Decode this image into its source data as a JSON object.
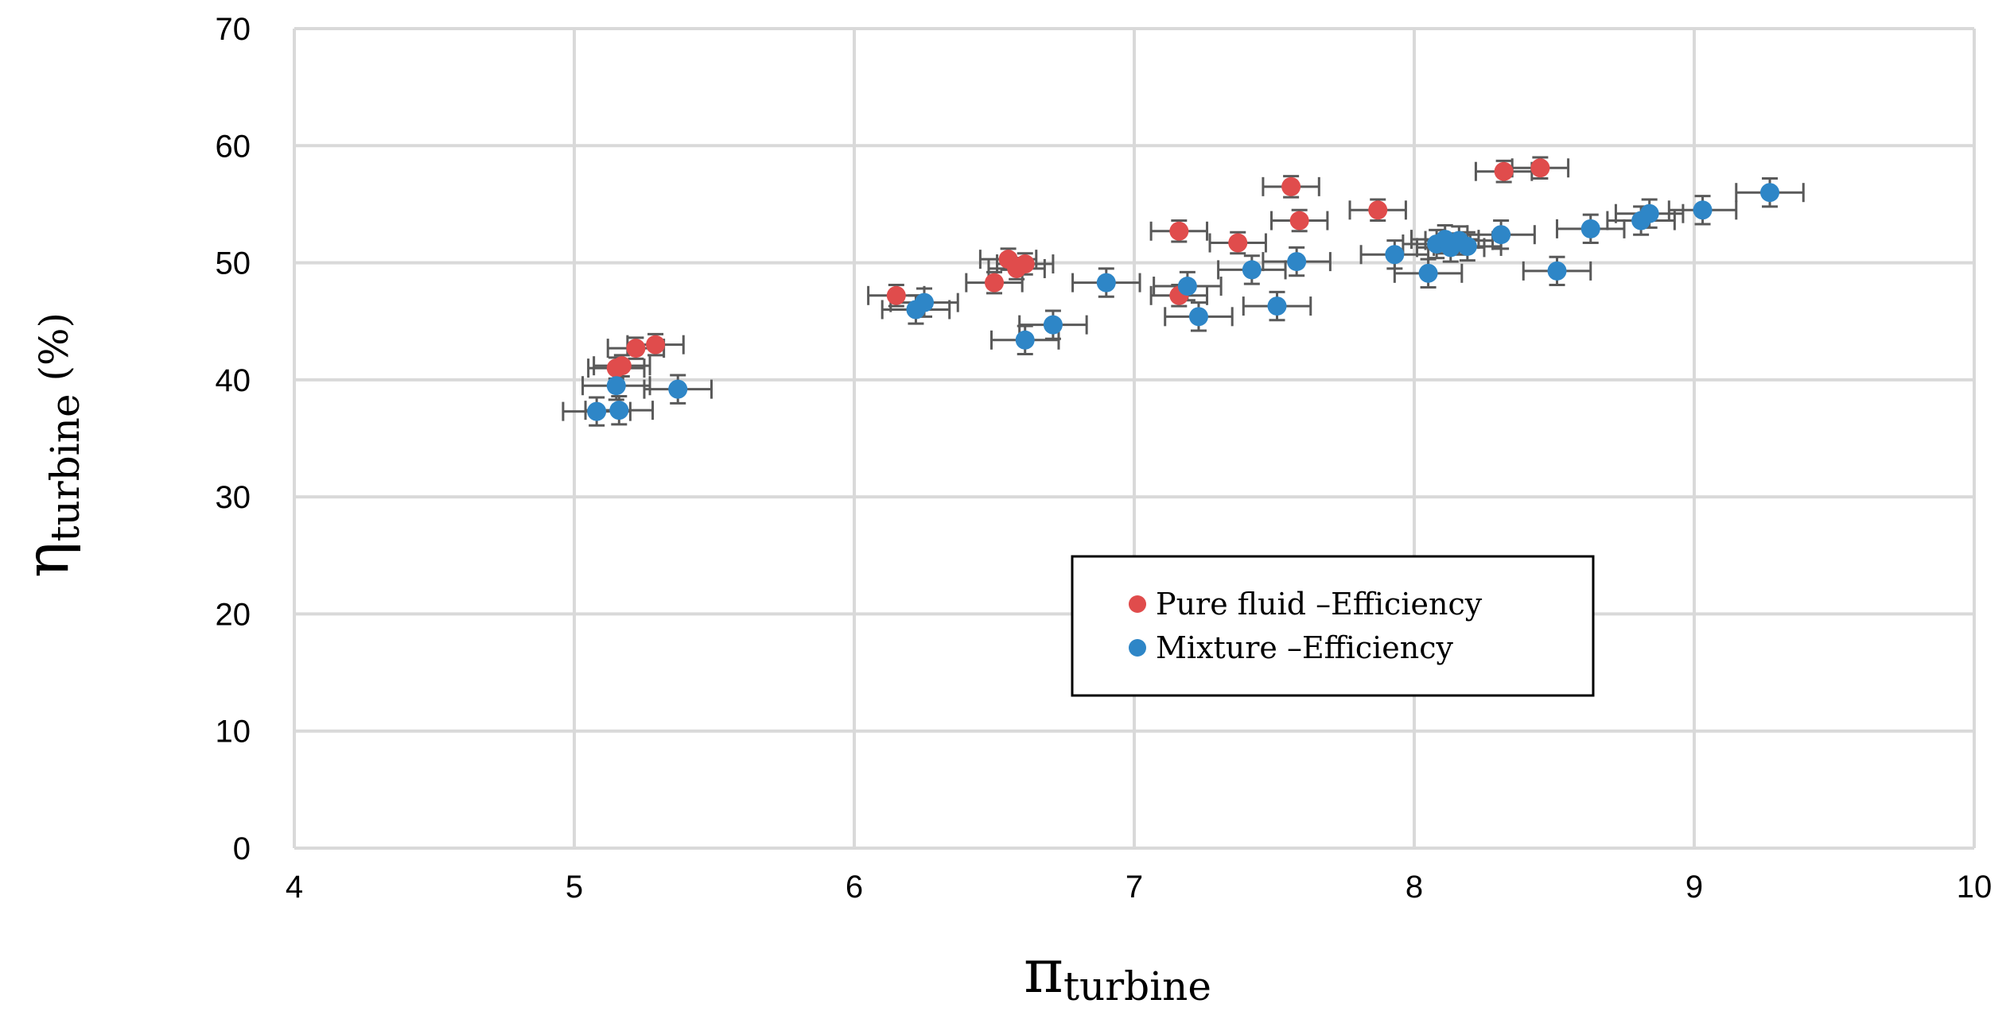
{
  "chart_data": {
    "type": "scatter",
    "xlim": [
      4,
      10
    ],
    "ylim": [
      0,
      70
    ],
    "x_ticks": [
      "4",
      "5",
      "6",
      "7",
      "8",
      "9",
      "10"
    ],
    "y_ticks": [
      "0",
      "10",
      "20",
      "30",
      "40",
      "50",
      "60",
      "70"
    ],
    "xlabel": {
      "symbol": "π",
      "subscript": "turbine"
    },
    "ylabel": {
      "symbol": "η",
      "subscript": "turbine",
      "suffix": " (%)"
    },
    "grid": true,
    "legend_position": "center-right",
    "series": [
      {
        "name": "Pure fluid –Efficiency",
        "color": "#e04c4c",
        "x_error": 0.1,
        "y_error": 0.9,
        "points": [
          [
            5.15,
            41.0
          ],
          [
            5.17,
            41.2
          ],
          [
            5.22,
            42.7
          ],
          [
            5.29,
            43.0
          ],
          [
            6.15,
            47.2
          ],
          [
            6.5,
            48.3
          ],
          [
            6.55,
            50.3
          ],
          [
            6.58,
            49.5
          ],
          [
            6.61,
            49.9
          ],
          [
            7.16,
            52.7
          ],
          [
            7.16,
            47.2
          ],
          [
            7.37,
            51.7
          ],
          [
            7.56,
            56.5
          ],
          [
            7.59,
            53.6
          ],
          [
            7.87,
            54.5
          ],
          [
            8.32,
            57.8
          ],
          [
            8.45,
            58.1
          ]
        ]
      },
      {
        "name": "Mixture –Efficiency",
        "color": "#2e86c7",
        "x_error": 0.12,
        "y_error": 1.2,
        "points": [
          [
            5.08,
            37.3
          ],
          [
            5.15,
            39.5
          ],
          [
            5.16,
            37.4
          ],
          [
            5.37,
            39.2
          ],
          [
            6.22,
            46.0
          ],
          [
            6.25,
            46.6
          ],
          [
            6.61,
            43.4
          ],
          [
            6.71,
            44.7
          ],
          [
            6.9,
            48.3
          ],
          [
            7.19,
            48.0
          ],
          [
            7.23,
            45.4
          ],
          [
            7.42,
            49.4
          ],
          [
            7.51,
            46.3
          ],
          [
            7.58,
            50.1
          ],
          [
            7.93,
            50.7
          ],
          [
            8.05,
            49.1
          ],
          [
            8.08,
            51.6
          ],
          [
            8.11,
            52.0
          ],
          [
            8.13,
            51.3
          ],
          [
            8.16,
            51.9
          ],
          [
            8.19,
            51.4
          ],
          [
            8.31,
            52.4
          ],
          [
            8.51,
            49.3
          ],
          [
            8.63,
            52.9
          ],
          [
            8.81,
            53.6
          ],
          [
            8.84,
            54.2
          ],
          [
            9.03,
            54.5
          ],
          [
            9.27,
            56.0
          ]
        ]
      }
    ]
  }
}
